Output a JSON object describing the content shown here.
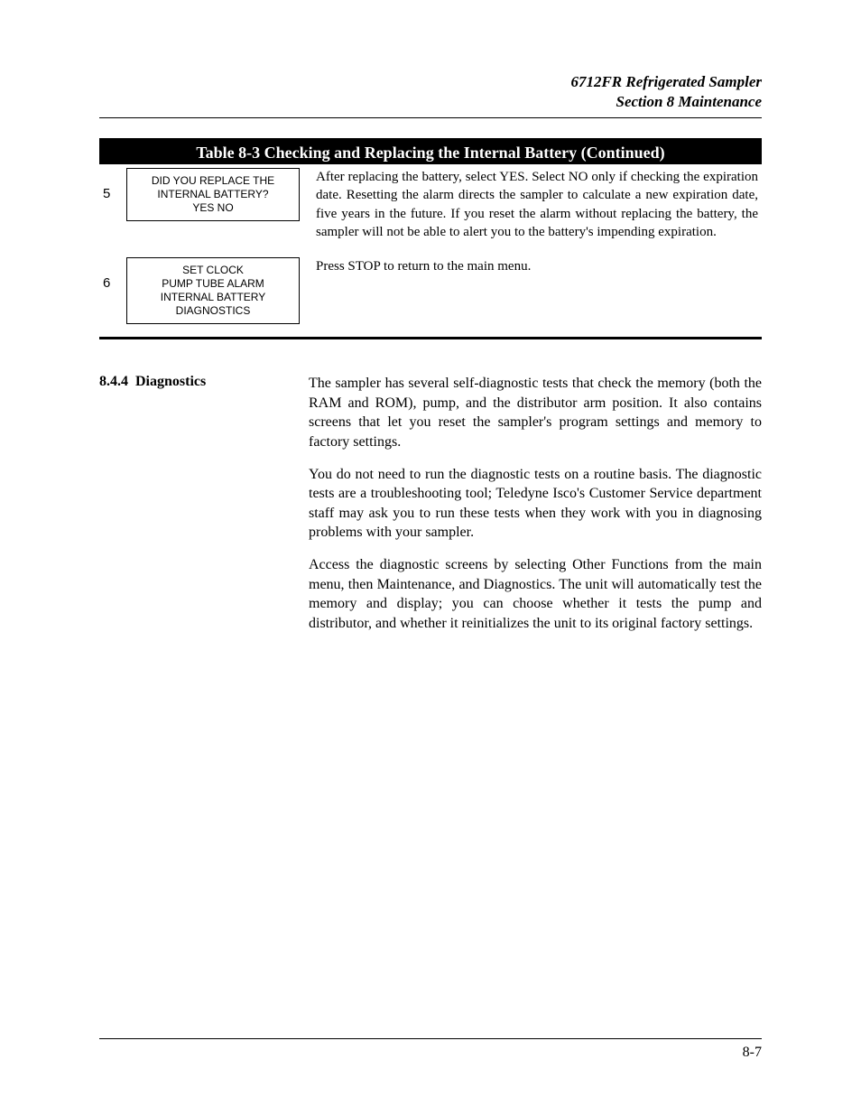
{
  "header": {
    "line1": "6712FR Refrigerated Sampler",
    "line2": "Section 8   Maintenance"
  },
  "table": {
    "title": "Table 8-3  Checking and Replacing the Internal Battery (Continued)",
    "rows": [
      {
        "num": "5",
        "box": "DID YOU REPLACE THE\nINTERNAL BATTERY?\nYES   NO",
        "desc": "After replacing the battery, select YES. Select NO only if checking the expiration date.\nResetting the alarm directs the sampler to calculate a new expiration date, five years in the future. If you reset the alarm without replacing the battery, the sampler will not be able to alert you to the battery's impending expiration."
      },
      {
        "num": "6",
        "box": "SET CLOCK\nPUMP TUBE ALARM\nINTERNAL BATTERY\nDIAGNOSTICS",
        "desc": "Press STOP to return to the main menu."
      }
    ]
  },
  "section": {
    "number": "8.4.4",
    "title": "Diagnostics",
    "paragraphs": [
      "The sampler has several self-diagnostic tests that check the memory (both the RAM and ROM), pump, and the distributor arm position. It also contains screens that let you reset the sampler's program settings and memory to factory settings.",
      "You do not need to run the diagnostic tests on a routine basis. The diagnostic tests are a troubleshooting tool; Teledyne Isco's Customer Service department staff may ask you to run these tests when they work with you in diagnosing problems with your sampler.",
      "Access the diagnostic screens by selecting Other Functions from the main menu, then Maintenance, and Diagnostics. The unit will automatically test the memory and display; you can choose whether it tests the pump and distributor, and whether it reinitializes the unit to its original factory settings."
    ]
  },
  "footer": {
    "page": "8-7"
  },
  "colors": {
    "background": "#ffffff",
    "text": "#000000",
    "table_header_bg": "#000000",
    "table_header_fg": "#ffffff",
    "rule": "#000000"
  },
  "fonts": {
    "body_serif": "Times New Roman / Century Schoolbook",
    "ui_sans": "Arial",
    "title_size_pt": 18,
    "body_size_pt": 16,
    "box_size_pt": 12
  }
}
